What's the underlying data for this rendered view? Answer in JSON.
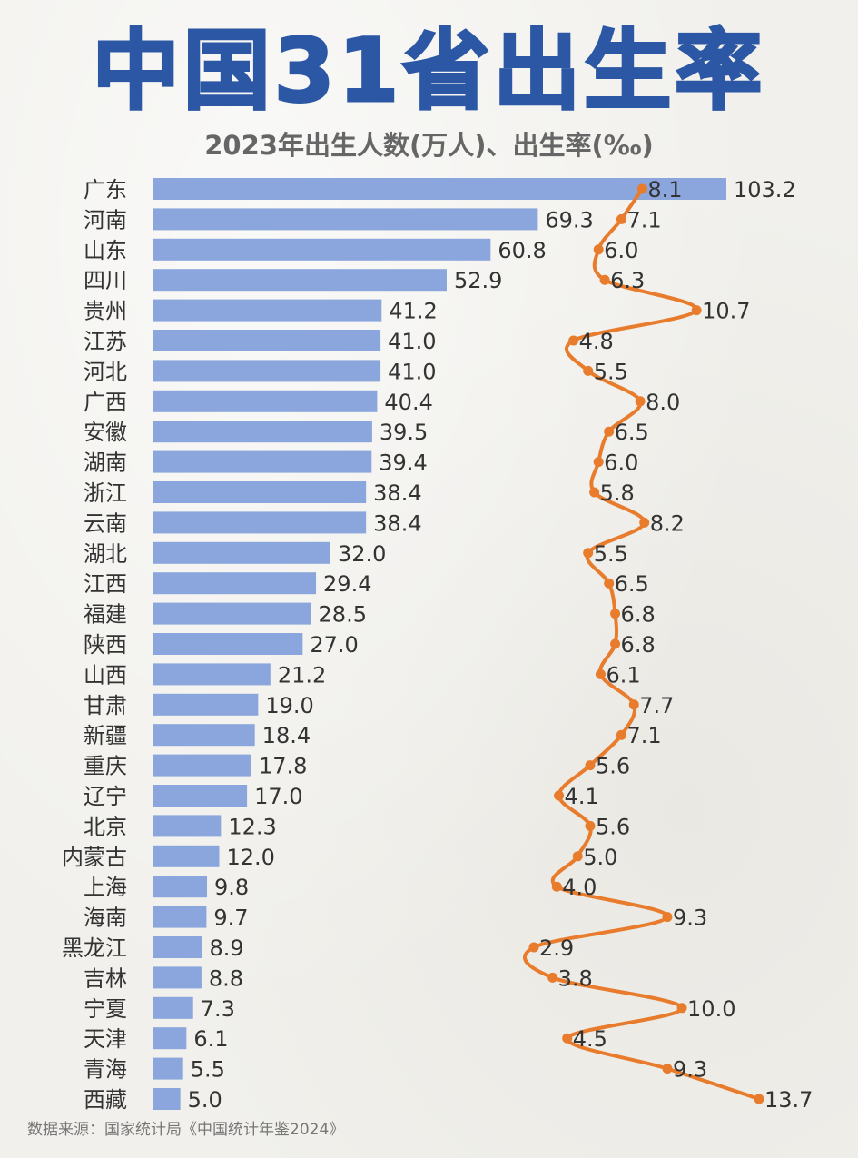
{
  "page": {
    "title": "中国31省出生率",
    "subtitle": "2023年出生人数(万人)、出生率(‰)",
    "source": "数据来源：国家统计局《中国统计年鉴2024》"
  },
  "colors": {
    "title": "#2c57a4",
    "bar": "#8aa6dc",
    "line": "#e87c2c",
    "text": "#333333"
  },
  "chart_data": {
    "type": "bar",
    "orientation": "horizontal",
    "title": "中国31省出生率",
    "subtitle": "2023年出生人数(万人)、出生率(‰)",
    "categories": [
      "广东",
      "河南",
      "山东",
      "四川",
      "贵州",
      "江苏",
      "河北",
      "广西",
      "安徽",
      "湖南",
      "浙江",
      "云南",
      "湖北",
      "江西",
      "福建",
      "陕西",
      "山西",
      "甘肃",
      "新疆",
      "重庆",
      "辽宁",
      "北京",
      "内蒙古",
      "上海",
      "海南",
      "黑龙江",
      "吉林",
      "宁夏",
      "天津",
      "青海",
      "西藏"
    ],
    "series": [
      {
        "type": "bar",
        "values": [
          103.2,
          69.3,
          60.8,
          52.9,
          41.2,
          41.0,
          41.0,
          40.4,
          39.5,
          39.4,
          38.4,
          38.4,
          32.0,
          29.4,
          28.5,
          27.0,
          21.2,
          19.0,
          18.4,
          17.8,
          17.0,
          12.3,
          12.0,
          9.8,
          9.7,
          8.9,
          8.8,
          7.3,
          6.1,
          5.5,
          5.0
        ],
        "labels": [
          "103.2",
          "69.3",
          "60.8",
          "52.9",
          "41.2",
          "41.0",
          "41.0",
          "40.4",
          "39.5",
          "39.4",
          "38.4",
          "38.4",
          "32.0",
          "29.4",
          "28.5",
          "27.0",
          "21.2",
          "19.0",
          "18.4",
          "17.8",
          "17.0",
          "12.3",
          "12.0",
          "9.8",
          "9.7",
          "8.9",
          "8.8",
          "7.3",
          "6.1",
          "5.5",
          "5.0"
        ]
      },
      {
        "type": "line",
        "values": [
          8.1,
          7.1,
          6.0,
          6.3,
          10.7,
          4.8,
          5.5,
          8.0,
          6.5,
          6.0,
          5.8,
          8.2,
          5.5,
          6.5,
          6.8,
          6.8,
          6.1,
          7.7,
          7.1,
          5.6,
          4.1,
          5.6,
          5.0,
          4.0,
          9.3,
          2.9,
          3.8,
          10.0,
          4.5,
          9.3,
          13.7
        ],
        "labels": [
          "8.1",
          "7.1",
          "6.0",
          "6.3",
          "10.7",
          "4.8",
          "5.5",
          "8.0",
          "6.5",
          "6.0",
          "5.8",
          "8.2",
          "5.5",
          "6.5",
          "6.8",
          "6.8",
          "6.1",
          "7.7",
          "7.1",
          "5.6",
          "4.1",
          "5.6",
          "5.0",
          "4.0",
          "9.3",
          "2.9",
          "3.8",
          "10.0",
          "4.5",
          "9.3",
          "13.7"
        ]
      }
    ],
    "grid": false,
    "legend": "none"
  }
}
